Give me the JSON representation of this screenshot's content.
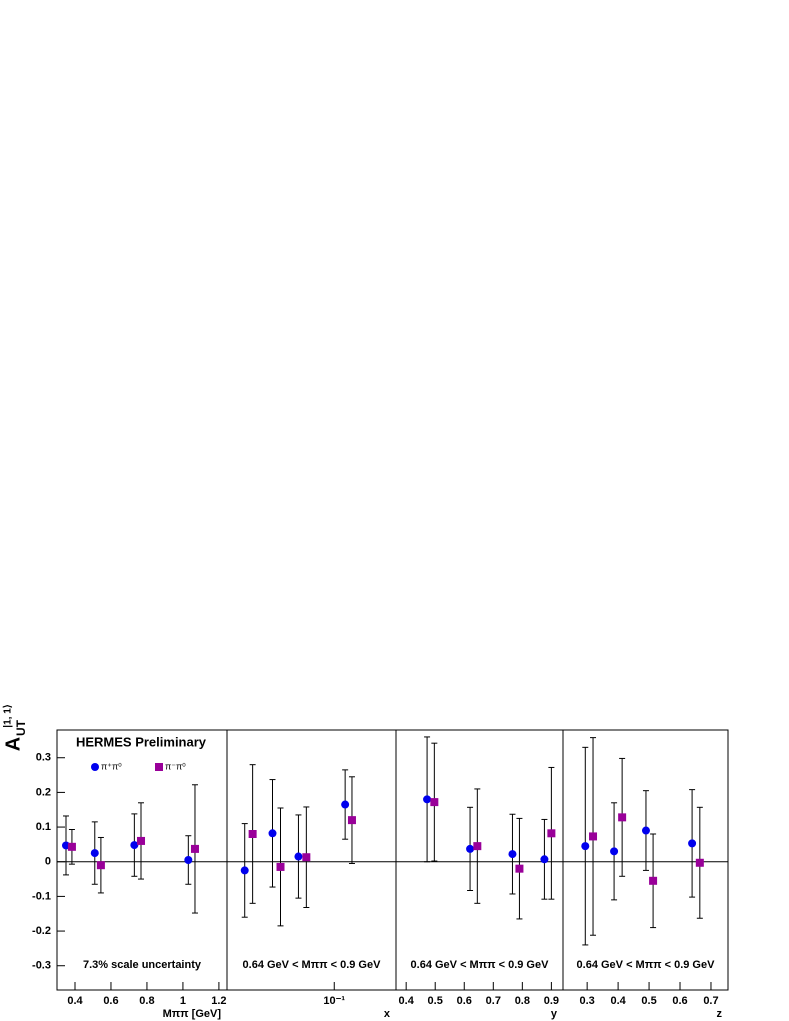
{
  "chart_data": [
    {
      "type": "scatter",
      "title": "HERMES Preliminary",
      "ylabel": "A",
      "ylabel_sub": "UT",
      "ylabel_sup": "|1, 1⟩",
      "xlabel": "Mππ [GeV]",
      "annotation": "7.3% scale uncertainty",
      "xlim": [
        0.3,
        1.245
      ],
      "xticks": [
        0.4,
        0.6,
        0.8,
        1,
        1.2
      ],
      "ylim": [
        -0.37,
        0.38
      ],
      "yticks": [
        -0.3,
        -0.2,
        -0.1,
        0,
        0.1,
        0.2,
        0.3
      ],
      "hline": 0,
      "series": [
        {
          "name": "π⁺π⁰",
          "color": "#0000ee",
          "marker": "circle",
          "x": [
            0.35,
            0.51,
            0.73,
            1.03
          ],
          "values": [
            0.047,
            0.025,
            0.048,
            0.005
          ],
          "errors": [
            0.085,
            0.09,
            0.09,
            0.07
          ]
        },
        {
          "name": "π⁻π⁰",
          "color": "#990099",
          "marker": "square",
          "x": [
            0.383,
            0.544,
            0.767,
            1.067
          ],
          "values": [
            0.043,
            -0.01,
            0.06,
            0.037
          ],
          "errors": [
            0.05,
            0.08,
            0.11,
            0.185
          ]
        }
      ]
    },
    {
      "type": "scatter",
      "xlabel": "x",
      "annotation": "0.64 GeV < Mππ < 0.9 GeV",
      "xscale": "log",
      "xlim": [
        0.03,
        0.2
      ],
      "xticks": [
        {
          "value": 0.1,
          "label": "10⁻¹"
        }
      ],
      "ylim": [
        -0.37,
        0.38
      ],
      "hline": 0,
      "series": [
        {
          "color": "#0000ee",
          "marker": "circle",
          "x": [
            0.0366,
            0.05,
            0.0669,
            0.113
          ],
          "values": [
            -0.025,
            0.082,
            0.015,
            0.165
          ],
          "errors": [
            0.135,
            0.155,
            0.12,
            0.1
          ]
        },
        {
          "color": "#990099",
          "marker": "square",
          "x": [
            0.04,
            0.0547,
            0.0731,
            0.122
          ],
          "values": [
            0.08,
            -0.015,
            0.013,
            0.12
          ],
          "errors": [
            0.2,
            0.17,
            0.145,
            0.125
          ]
        }
      ]
    },
    {
      "type": "scatter",
      "xlabel": "y",
      "annotation": "0.64 GeV < Mππ < 0.9 GeV",
      "xlim": [
        0.365,
        0.94
      ],
      "xticks": [
        0.4,
        0.5,
        0.6,
        0.7,
        0.8,
        0.9
      ],
      "ylim": [
        -0.37,
        0.38
      ],
      "hline": 0,
      "series": [
        {
          "color": "#0000ee",
          "marker": "circle",
          "x": [
            0.472,
            0.62,
            0.766,
            0.876
          ],
          "values": [
            0.18,
            0.037,
            0.022,
            0.007
          ],
          "errors": [
            0.18,
            0.12,
            0.115,
            0.115
          ]
        },
        {
          "color": "#990099",
          "marker": "square",
          "x": [
            0.497,
            0.645,
            0.79,
            0.9
          ],
          "values": [
            0.172,
            0.045,
            -0.02,
            0.082
          ],
          "errors": [
            0.17,
            0.165,
            0.145,
            0.19
          ]
        }
      ]
    },
    {
      "type": "scatter",
      "xlabel": "z",
      "annotation": "0.64 GeV < Mππ < 0.9 GeV",
      "xlim": [
        0.222,
        0.755
      ],
      "xticks": [
        0.3,
        0.4,
        0.5,
        0.6,
        0.7
      ],
      "ylim": [
        -0.37,
        0.38
      ],
      "hline": 0,
      "series": [
        {
          "color": "#0000ee",
          "marker": "circle",
          "x": [
            0.294,
            0.387,
            0.49,
            0.639
          ],
          "values": [
            0.045,
            0.03,
            0.09,
            0.053
          ],
          "errors": [
            0.285,
            0.14,
            0.115,
            0.155
          ]
        },
        {
          "color": "#990099",
          "marker": "square",
          "x": [
            0.319,
            0.413,
            0.513,
            0.664
          ],
          "values": [
            0.073,
            0.128,
            -0.055,
            -0.003
          ],
          "errors": [
            0.285,
            0.17,
            0.135,
            0.16
          ]
        }
      ]
    }
  ]
}
